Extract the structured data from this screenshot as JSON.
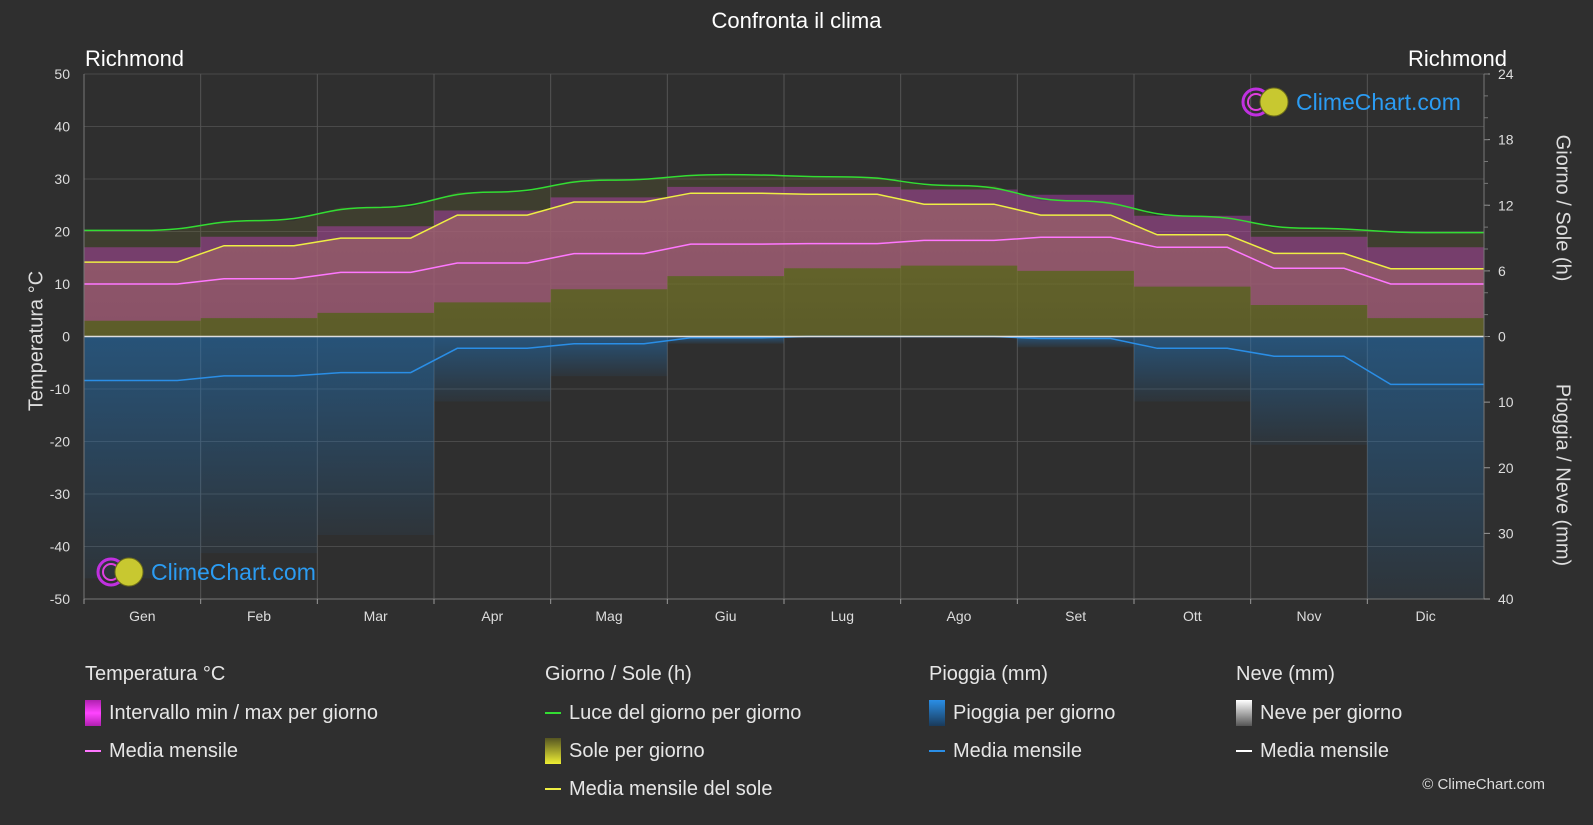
{
  "title": "Confronta il clima",
  "location_left": "Richmond",
  "location_right": "Richmond",
  "axis_left_title": "Temperatura °C",
  "axis_right_top_title": "Giorno / Sole (h)",
  "axis_right_bottom_title": "Pioggia / Neve (mm)",
  "logo_text": "ClimeChart.com",
  "copyright": "© ClimeChart.com",
  "colors": {
    "background": "#2f2f2f",
    "temp_range": "#e040e0",
    "temp_mean": "#ff77ff",
    "daylight": "#33dd33",
    "sunshine_fill": "#8a8a28",
    "sunshine_mean": "#eeee44",
    "rain": "#1f78c4",
    "rain_mean": "#2a8ee6",
    "snow_mean": "#ffffff"
  },
  "chart_data": {
    "type": "line",
    "categories": [
      "Gen",
      "Feb",
      "Mar",
      "Apr",
      "Mag",
      "Giu",
      "Lug",
      "Ago",
      "Set",
      "Ott",
      "Nov",
      "Dic"
    ],
    "left_axis": {
      "label": "Temperatura °C",
      "range": [
        -50,
        50
      ],
      "ticks": [
        50,
        40,
        30,
        20,
        10,
        0,
        -10,
        -20,
        -30,
        -40,
        -50
      ]
    },
    "right_axis_top": {
      "label": "Giorno / Sole (h)",
      "range": [
        0,
        24
      ],
      "ticks": [
        24,
        18,
        12,
        6,
        0
      ]
    },
    "right_axis_bottom": {
      "label": "Pioggia / Neve (mm)",
      "range": [
        0,
        40
      ],
      "ticks": [
        0,
        10,
        20,
        30,
        40
      ]
    },
    "series": [
      {
        "name": "Media mensile",
        "group": "Temperatura °C",
        "unit": "°C",
        "values": [
          10,
          11,
          12.2,
          14,
          15.8,
          17.6,
          17.7,
          18.3,
          18.9,
          17,
          13,
          10
        ]
      },
      {
        "name": "Intervallo min / max per giorno",
        "group": "Temperatura °C",
        "unit": "°C",
        "min": [
          3,
          3.5,
          4.5,
          6.5,
          9,
          11.5,
          13,
          13.5,
          12.5,
          9.5,
          6,
          3.5
        ],
        "max": [
          17,
          19,
          21,
          24,
          26.5,
          28.5,
          28.5,
          28,
          27,
          23,
          19,
          17
        ]
      },
      {
        "name": "Luce del giorno per giorno",
        "group": "Giorno / Sole (h)",
        "unit": "h",
        "values": [
          9.7,
          10.6,
          11.8,
          13.2,
          14.3,
          14.8,
          14.6,
          13.8,
          12.4,
          11.0,
          9.9,
          9.5
        ]
      },
      {
        "name": "Media mensile del sole",
        "group": "Giorno / Sole (h)",
        "unit": "h",
        "values": [
          6.8,
          8.3,
          9.0,
          11.1,
          12.3,
          13.1,
          13.0,
          12.1,
          11.1,
          9.3,
          7.6,
          6.2
        ]
      },
      {
        "name": "Media mensile",
        "group": "Pioggia (mm)",
        "unit": "mm",
        "values": [
          6.7,
          6.0,
          5.5,
          1.8,
          1.1,
          0.2,
          0.0,
          0.0,
          0.3,
          1.8,
          3.0,
          7.3
        ]
      },
      {
        "name": "Media mensile",
        "group": "Neve (mm)",
        "unit": "mm",
        "values": [
          0,
          0,
          0,
          0,
          0,
          0,
          0,
          0,
          0,
          0,
          0,
          0
        ]
      }
    ],
    "grid": true
  },
  "legend": {
    "groups": [
      {
        "title": "Temperatura °C",
        "items": [
          {
            "label": "Intervallo min / max per giorno",
            "kind": "box",
            "color": "#e040e0"
          },
          {
            "label": "Media mensile",
            "kind": "line",
            "color": "#ff77ff"
          }
        ]
      },
      {
        "title": "Giorno / Sole (h)",
        "items": [
          {
            "label": "Luce del giorno per giorno",
            "kind": "line",
            "color": "#33dd33"
          },
          {
            "label": "Sole per giorno",
            "kind": "box",
            "color": "#cccc33"
          },
          {
            "label": "Media mensile del sole",
            "kind": "line",
            "color": "#eeee44"
          }
        ]
      },
      {
        "title": "Pioggia (mm)",
        "items": [
          {
            "label": "Pioggia per giorno",
            "kind": "box",
            "color": "#2a8ee6"
          },
          {
            "label": "Media mensile",
            "kind": "line",
            "color": "#2a8ee6"
          }
        ]
      },
      {
        "title": "Neve (mm)",
        "items": [
          {
            "label": "Neve per giorno",
            "kind": "box",
            "color": "#dddddd"
          },
          {
            "label": "Media mensile",
            "kind": "line",
            "color": "#ffffff"
          }
        ]
      }
    ]
  }
}
